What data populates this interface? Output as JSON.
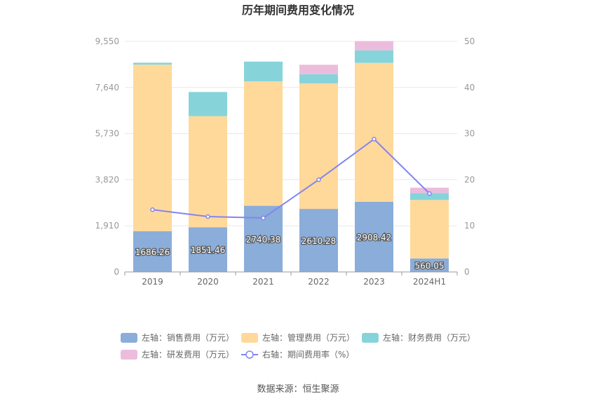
{
  "chart_data": {
    "type": "bar",
    "title": "历年期间费用变化情况",
    "categories": [
      "2019",
      "2020",
      "2021",
      "2022",
      "2023",
      "2024H1"
    ],
    "left_axis": {
      "min": 0,
      "max": 9550,
      "ticks": [
        "0",
        "1,910",
        "3,820",
        "5,730",
        "7,640",
        "9,550"
      ],
      "tick_values": [
        0,
        1910,
        3820,
        5730,
        7640,
        9550
      ]
    },
    "right_axis": {
      "min": 0,
      "max": 50,
      "ticks": [
        "0",
        "10",
        "20",
        "30",
        "40",
        "50"
      ],
      "tick_values": [
        0,
        10,
        20,
        30,
        40,
        50
      ]
    },
    "stacked": true,
    "grid": true,
    "legend_position": "bottom",
    "series": [
      {
        "name": "左轴：销售费用（万元）",
        "axis": "left",
        "type": "bar",
        "color": "#8badd9",
        "values": [
          1686.26,
          1851.46,
          2740.38,
          2610.28,
          2908.42,
          560.05
        ],
        "labels": [
          "1686.26",
          "1851.46",
          "2740.38",
          "2610.28",
          "2908.42",
          "560.05"
        ]
      },
      {
        "name": "左轴：管理费用（万元）",
        "axis": "left",
        "type": "bar",
        "color": "#ffd99a",
        "values": [
          6900,
          4600,
          5150,
          5200,
          5750,
          2420
        ]
      },
      {
        "name": "左轴：财务费用（万元）",
        "axis": "left",
        "type": "bar",
        "color": "#86d4da",
        "values": [
          80,
          1000,
          820,
          380,
          520,
          290
        ]
      },
      {
        "name": "左轴：研发费用（万元）",
        "axis": "left",
        "type": "bar",
        "color": "#ecbcdc",
        "values": [
          0,
          0,
          0,
          390,
          380,
          220
        ]
      },
      {
        "name": "右轴：期间费用率（%）",
        "axis": "right",
        "type": "line",
        "color": "#8484f0",
        "values": [
          13.5,
          12.0,
          11.7,
          20.0,
          28.8,
          17.0
        ]
      }
    ]
  },
  "source": "数据来源：恒生聚源"
}
